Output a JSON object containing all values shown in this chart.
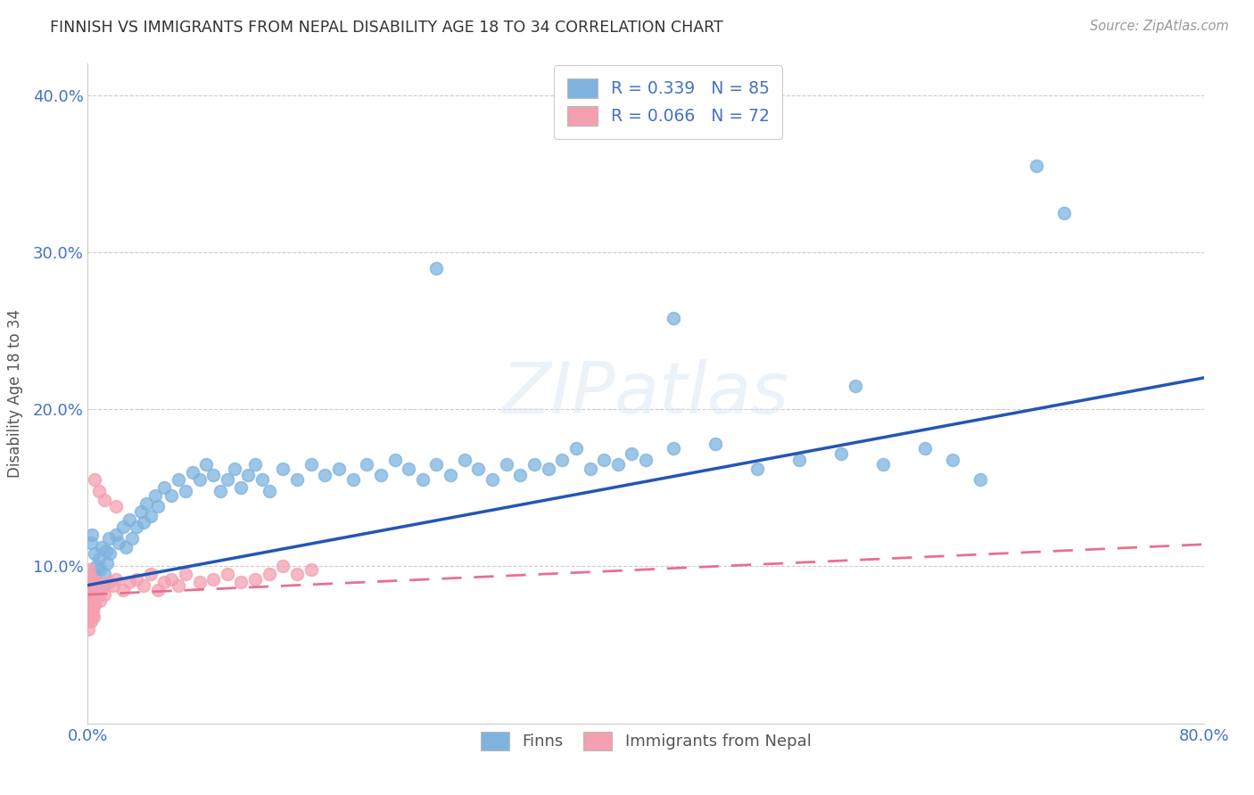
{
  "title": "FINNISH VS IMMIGRANTS FROM NEPAL DISABILITY AGE 18 TO 34 CORRELATION CHART",
  "source": "Source: ZipAtlas.com",
  "ylabel": "Disability Age 18 to 34",
  "xlim": [
    0.0,
    0.8
  ],
  "ylim": [
    0.0,
    0.42
  ],
  "legend_finns": "Finns",
  "legend_nepal": "Immigrants from Nepal",
  "R_finns": 0.339,
  "N_finns": 85,
  "R_nepal": 0.066,
  "N_nepal": 72,
  "color_finns": "#7eb3e0",
  "color_nepal": "#f4a0b0",
  "color_finns_line": "#2356b5",
  "color_nepal_line": "#e87090",
  "finns_intercept": 0.088,
  "finns_slope": 0.165,
  "nepal_intercept": 0.082,
  "nepal_slope": 0.04,
  "finns_x": [
    0.002,
    0.003,
    0.004,
    0.005,
    0.006,
    0.007,
    0.008,
    0.009,
    0.01,
    0.011,
    0.012,
    0.013,
    0.014,
    0.015,
    0.016,
    0.02,
    0.022,
    0.025,
    0.027,
    0.03,
    0.032,
    0.035,
    0.038,
    0.04,
    0.042,
    0.045,
    0.048,
    0.05,
    0.055,
    0.06,
    0.065,
    0.07,
    0.075,
    0.08,
    0.085,
    0.09,
    0.095,
    0.1,
    0.105,
    0.11,
    0.115,
    0.12,
    0.125,
    0.13,
    0.14,
    0.15,
    0.16,
    0.17,
    0.18,
    0.19,
    0.2,
    0.21,
    0.22,
    0.23,
    0.24,
    0.25,
    0.26,
    0.27,
    0.28,
    0.29,
    0.3,
    0.31,
    0.32,
    0.33,
    0.34,
    0.35,
    0.36,
    0.37,
    0.38,
    0.39,
    0.4,
    0.42,
    0.45,
    0.48,
    0.51,
    0.54,
    0.57,
    0.6,
    0.62,
    0.64,
    0.42,
    0.55,
    0.68,
    0.7,
    0.25
  ],
  "finns_y": [
    0.115,
    0.12,
    0.095,
    0.108,
    0.1,
    0.09,
    0.105,
    0.098,
    0.112,
    0.088,
    0.095,
    0.11,
    0.102,
    0.118,
    0.108,
    0.12,
    0.115,
    0.125,
    0.112,
    0.13,
    0.118,
    0.125,
    0.135,
    0.128,
    0.14,
    0.132,
    0.145,
    0.138,
    0.15,
    0.145,
    0.155,
    0.148,
    0.16,
    0.155,
    0.165,
    0.158,
    0.148,
    0.155,
    0.162,
    0.15,
    0.158,
    0.165,
    0.155,
    0.148,
    0.162,
    0.155,
    0.165,
    0.158,
    0.162,
    0.155,
    0.165,
    0.158,
    0.168,
    0.162,
    0.155,
    0.165,
    0.158,
    0.168,
    0.162,
    0.155,
    0.165,
    0.158,
    0.165,
    0.162,
    0.168,
    0.175,
    0.162,
    0.168,
    0.165,
    0.172,
    0.168,
    0.175,
    0.178,
    0.162,
    0.168,
    0.172,
    0.165,
    0.175,
    0.168,
    0.155,
    0.258,
    0.215,
    0.355,
    0.325,
    0.29
  ],
  "nepal_x": [
    0.0005,
    0.001,
    0.0015,
    0.002,
    0.0025,
    0.003,
    0.0035,
    0.004,
    0.0045,
    0.005,
    0.0005,
    0.001,
    0.0015,
    0.002,
    0.0025,
    0.003,
    0.0035,
    0.004,
    0.0045,
    0.005,
    0.0005,
    0.001,
    0.0015,
    0.002,
    0.0025,
    0.003,
    0.0035,
    0.004,
    0.0045,
    0.005,
    0.0005,
    0.001,
    0.0015,
    0.002,
    0.0025,
    0.003,
    0.0035,
    0.004,
    0.0045,
    0.005,
    0.006,
    0.007,
    0.008,
    0.009,
    0.01,
    0.012,
    0.015,
    0.018,
    0.02,
    0.025,
    0.03,
    0.035,
    0.04,
    0.045,
    0.05,
    0.055,
    0.06,
    0.065,
    0.07,
    0.08,
    0.09,
    0.1,
    0.11,
    0.12,
    0.13,
    0.14,
    0.15,
    0.16,
    0.005,
    0.008,
    0.012,
    0.02
  ],
  "nepal_y": [
    0.082,
    0.078,
    0.085,
    0.072,
    0.09,
    0.068,
    0.088,
    0.075,
    0.08,
    0.076,
    0.095,
    0.088,
    0.07,
    0.092,
    0.078,
    0.085,
    0.072,
    0.09,
    0.08,
    0.076,
    0.065,
    0.098,
    0.082,
    0.07,
    0.088,
    0.075,
    0.085,
    0.078,
    0.09,
    0.082,
    0.06,
    0.075,
    0.088,
    0.065,
    0.092,
    0.072,
    0.085,
    0.078,
    0.068,
    0.082,
    0.085,
    0.09,
    0.082,
    0.078,
    0.088,
    0.082,
    0.09,
    0.088,
    0.092,
    0.085,
    0.09,
    0.092,
    0.088,
    0.095,
    0.085,
    0.09,
    0.092,
    0.088,
    0.095,
    0.09,
    0.092,
    0.095,
    0.09,
    0.092,
    0.095,
    0.1,
    0.095,
    0.098,
    0.155,
    0.148,
    0.142,
    0.138
  ]
}
